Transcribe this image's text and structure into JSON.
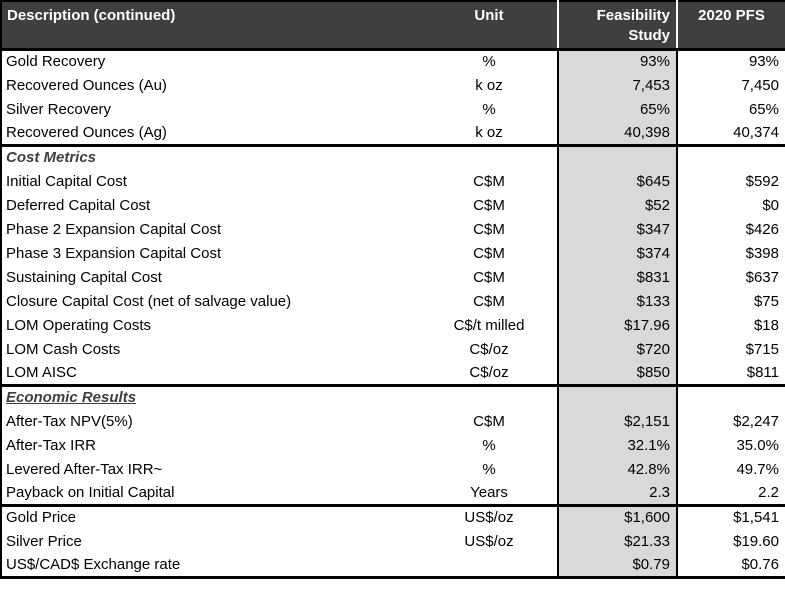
{
  "header": {
    "col_description": "Description (continued)",
    "col_unit": "Unit",
    "col_feasibility": "Feasibility Study",
    "col_pfs": "2020 PFS"
  },
  "colors": {
    "header_bg": "#3F3F3F",
    "header_text": "#FFFFFF",
    "feasibility_column_bg": "#D9D9D9",
    "border": "#000000",
    "section_title_text": "#3F3F3F"
  },
  "rows": [
    {
      "desc": "Gold Recovery",
      "unit": "%",
      "fs": "93%",
      "pfs": "93%"
    },
    {
      "desc": "Recovered Ounces (Au)",
      "unit": "k oz",
      "fs": "7,453",
      "pfs": "7,450"
    },
    {
      "desc": "Silver Recovery",
      "unit": "%",
      "fs": "65%",
      "pfs": "65%"
    },
    {
      "desc": "Recovered Ounces (Ag)",
      "unit": "k oz",
      "fs": "40,398",
      "pfs": "40,374"
    },
    {
      "desc": "Cost Metrics",
      "unit": "",
      "fs": "",
      "pfs": "",
      "section": true
    },
    {
      "desc": "Initial Capital Cost",
      "unit": "C$M",
      "fs": "$645",
      "pfs": "$592"
    },
    {
      "desc": "Deferred Capital Cost",
      "unit": "C$M",
      "fs": "$52",
      "pfs": "$0"
    },
    {
      "desc": "Phase 2 Expansion Capital Cost",
      "unit": "C$M",
      "fs": "$347",
      "pfs": "$426"
    },
    {
      "desc": "Phase 3 Expansion Capital Cost",
      "unit": "C$M",
      "fs": "$374",
      "pfs": "$398"
    },
    {
      "desc": "Sustaining Capital Cost",
      "unit": "C$M",
      "fs": "$831",
      "pfs": "$637"
    },
    {
      "desc": "Closure Capital Cost (net of salvage value)",
      "unit": "C$M",
      "fs": "$133",
      "pfs": "$75"
    },
    {
      "desc": "LOM Operating Costs",
      "unit": "C$/t milled",
      "fs": "$17.96",
      "pfs": "$18"
    },
    {
      "desc": "LOM Cash Costs",
      "unit": "C$/oz",
      "fs": "$720",
      "pfs": "$715"
    },
    {
      "desc": "LOM AISC",
      "unit": "C$/oz",
      "fs": "$850",
      "pfs": "$811"
    },
    {
      "desc": "Economic Results",
      "unit": "",
      "fs": "",
      "pfs": "",
      "section": true
    },
    {
      "desc": "After-Tax NPV(5%)",
      "unit": "C$M",
      "fs": "$2,151",
      "pfs": "$2,247"
    },
    {
      "desc": "After-Tax IRR",
      "unit": "%",
      "fs": "32.1%",
      "pfs": "35.0%"
    },
    {
      "desc": "Levered After-Tax IRR~",
      "unit": "%",
      "fs": "42.8%",
      "pfs": "49.7%"
    },
    {
      "desc": "Payback on Initial Capital",
      "unit": "Years",
      "fs": "2.3",
      "pfs": "2.2"
    },
    {
      "desc": "Gold Price",
      "unit": "US$/oz",
      "fs": "$1,600",
      "pfs": "$1,541"
    },
    {
      "desc": "Silver Price",
      "unit": "US$/oz",
      "fs": "$21.33",
      "pfs": "$19.60"
    },
    {
      "desc": "US$/CAD$ Exchange rate",
      "unit": "",
      "fs": "$0.79",
      "pfs": "$0.76"
    }
  ]
}
